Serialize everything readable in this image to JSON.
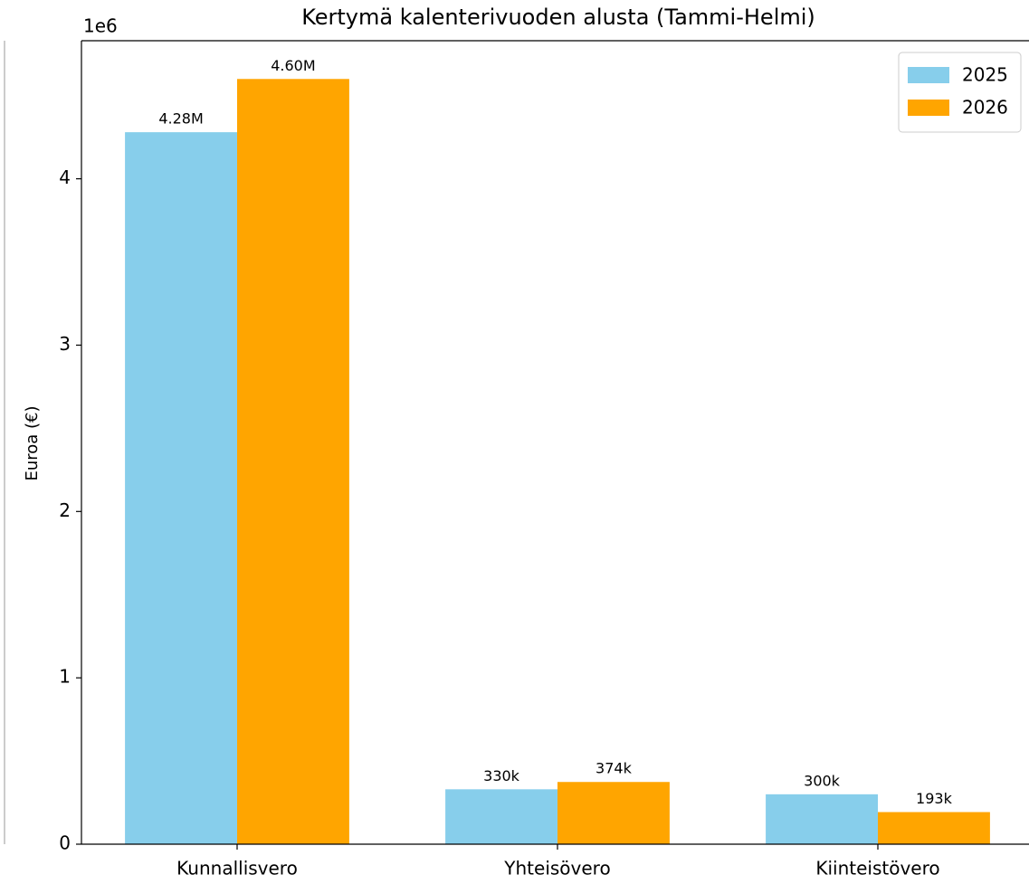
{
  "chart_data": {
    "type": "bar",
    "title": "Kertymä kalenterivuoden alusta (Tammi-Helmi)",
    "y_label": "Euroa (€)",
    "y_offset_label": "1e6",
    "categories": [
      "Kunnallisvero",
      "Yhteisövero",
      "Kiinteistövero"
    ],
    "series": [
      {
        "name": "2025",
        "color": "#87ceeb",
        "values": [
          4280000,
          330000,
          300000
        ],
        "value_labels": [
          "4.28M",
          "330k",
          "300k"
        ]
      },
      {
        "name": "2026",
        "color": "#ffa500",
        "values": [
          4600000,
          374000,
          193000
        ],
        "value_labels": [
          "4.60M",
          "374k",
          "193k"
        ]
      }
    ],
    "ylim": [
      0,
      4830000
    ],
    "yticks": [
      0,
      {
        "value": 1000000,
        "label": "1"
      },
      {
        "value": 2000000,
        "label": "2"
      },
      {
        "value": 3000000,
        "label": "3"
      },
      {
        "value": 4000000,
        "label": "4"
      }
    ],
    "legend": "upper right"
  }
}
